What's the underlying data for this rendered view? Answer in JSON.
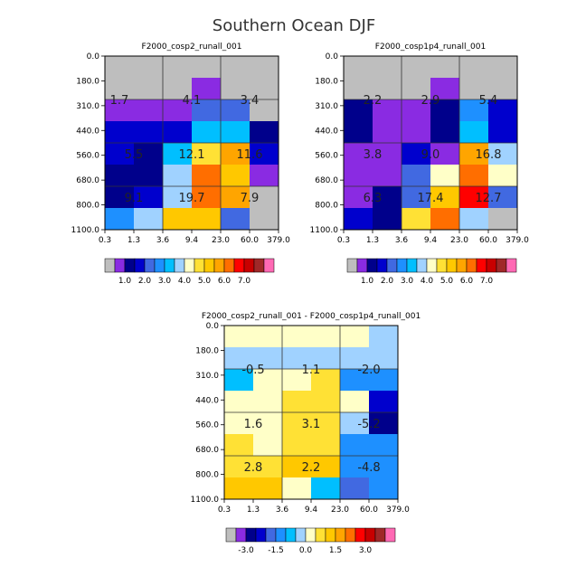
{
  "title": "Southern Ocean DJF",
  "colors": {
    "main_scale": [
      "#bebebe",
      "#8a2be2",
      "#00008b",
      "#0000cd",
      "#4169e1",
      "#1e90ff",
      "#00bfff",
      "#a0d2ff",
      "#ffffc8",
      "#ffe135",
      "#ffc800",
      "#ffa500",
      "#ff6e00",
      "#ff0000",
      "#c80000",
      "#a02828",
      "#ff69b4"
    ],
    "diff_scale": [
      "#bebebe",
      "#8a2be2",
      "#00008b",
      "#0000cd",
      "#4169e1",
      "#1e90ff",
      "#00bfff",
      "#a0d2ff",
      "#ffffc8",
      "#ffe135",
      "#ffc800",
      "#ffa500",
      "#ff6e00",
      "#ff0000",
      "#c80000",
      "#a02828",
      "#ff69b4"
    ]
  },
  "chart_data": [
    {
      "type": "heatmap",
      "title": "F2000_cosp2_runall_001",
      "x_ticks": [
        "0.3",
        "1.3",
        "3.6",
        "9.4",
        "23.0",
        "60.0",
        "379.0"
      ],
      "y_ticks": [
        "0.0",
        "180.0",
        "310.0",
        "440.0",
        "560.0",
        "680.0",
        "800.0",
        "1100.0"
      ],
      "cells": [
        [
          0,
          0,
          0,
          0,
          0,
          0
        ],
        [
          0,
          0,
          0,
          1,
          0,
          0
        ],
        [
          1,
          1,
          1,
          4,
          4,
          0
        ],
        [
          3,
          3,
          3,
          6,
          6,
          2
        ],
        [
          3,
          2,
          6,
          9,
          11,
          3
        ],
        [
          2,
          2,
          7,
          12,
          10,
          1
        ],
        [
          2,
          3,
          7,
          12,
          11,
          0
        ],
        [
          5,
          7,
          10,
          10,
          4,
          0
        ]
      ],
      "labels": [
        {
          "text": "1.7",
          "col": 0,
          "row": 1.5
        },
        {
          "text": "4.1",
          "col": 2.5,
          "row": 1.5
        },
        {
          "text": "3.4",
          "col": 4.5,
          "row": 1.5
        },
        {
          "text": "5.5",
          "col": 0.5,
          "row": 4
        },
        {
          "text": "12.1",
          "col": 2.5,
          "row": 4
        },
        {
          "text": "11.6",
          "col": 4.5,
          "row": 4
        },
        {
          "text": "9.1",
          "col": 0.5,
          "row": 6
        },
        {
          "text": "19.7",
          "col": 2.5,
          "row": 6
        },
        {
          "text": "7.9",
          "col": 4.5,
          "row": 6
        }
      ]
    },
    {
      "type": "heatmap",
      "title": "F2000_cosp1p4_runall_001",
      "x_ticks": [
        "0.3",
        "1.3",
        "3.6",
        "9.4",
        "23.0",
        "60.0",
        "379.0"
      ],
      "y_ticks": [
        "0.0",
        "180.0",
        "310.0",
        "440.0",
        "560.0",
        "680.0",
        "800.0",
        "1100.0"
      ],
      "cells": [
        [
          0,
          0,
          0,
          0,
          0,
          0
        ],
        [
          0,
          0,
          0,
          1,
          0,
          0
        ],
        [
          2,
          1,
          1,
          2,
          5,
          3
        ],
        [
          2,
          1,
          1,
          2,
          6,
          3
        ],
        [
          1,
          1,
          3,
          1,
          11,
          7
        ],
        [
          1,
          1,
          4,
          8,
          12,
          8
        ],
        [
          1,
          2,
          4,
          10,
          13,
          4
        ],
        [
          3,
          2,
          9,
          12,
          7,
          0
        ]
      ],
      "labels": [
        {
          "text": "2.2",
          "col": 0.5,
          "row": 1.5
        },
        {
          "text": "2.9",
          "col": 2.5,
          "row": 1.5
        },
        {
          "text": "5.4",
          "col": 4.5,
          "row": 1.5
        },
        {
          "text": "3.8",
          "col": 0.5,
          "row": 4
        },
        {
          "text": "9.0",
          "col": 2.5,
          "row": 4
        },
        {
          "text": "16.8",
          "col": 4.5,
          "row": 4
        },
        {
          "text": "6.3",
          "col": 0.5,
          "row": 6
        },
        {
          "text": "17.4",
          "col": 2.5,
          "row": 6
        },
        {
          "text": "12.7",
          "col": 4.5,
          "row": 6
        }
      ]
    },
    {
      "type": "heatmap",
      "title": "F2000_cosp2_runall_001 - F2000_cosp1p4_runall_001",
      "x_ticks": [
        "0.3",
        "1.3",
        "3.6",
        "9.4",
        "23.0",
        "60.0",
        "379.0"
      ],
      "y_ticks": [
        "0.0",
        "180.0",
        "310.0",
        "440.0",
        "560.0",
        "680.0",
        "800.0",
        "1100.0"
      ],
      "cells": [
        [
          8,
          8,
          8,
          8,
          8,
          7
        ],
        [
          7,
          7,
          7,
          7,
          7,
          7
        ],
        [
          6,
          8,
          8,
          9,
          5,
          5
        ],
        [
          8,
          8,
          9,
          9,
          8,
          3
        ],
        [
          8,
          8,
          9,
          9,
          7,
          2
        ],
        [
          9,
          8,
          9,
          9,
          5,
          5
        ],
        [
          9,
          9,
          10,
          10,
          5,
          5
        ],
        [
          10,
          10,
          8,
          6,
          4,
          5
        ]
      ],
      "labels": [
        {
          "text": "-0.5",
          "col": 0.5,
          "row": 1.5
        },
        {
          "text": "1.1",
          "col": 2.5,
          "row": 1.5
        },
        {
          "text": "-2.0",
          "col": 4.5,
          "row": 1.5
        },
        {
          "text": "1.6",
          "col": 0.5,
          "row": 4
        },
        {
          "text": "3.1",
          "col": 2.5,
          "row": 4
        },
        {
          "text": "-5.2",
          "col": 4.5,
          "row": 4
        },
        {
          "text": "2.8",
          "col": 0.5,
          "row": 6
        },
        {
          "text": "2.2",
          "col": 2.5,
          "row": 6
        },
        {
          "text": "-4.8",
          "col": 4.5,
          "row": 6
        }
      ]
    }
  ],
  "colorbars": [
    {
      "labels": [
        "1.0",
        "2.0",
        "3.0",
        "4.0",
        "5.0",
        "6.0",
        "7.0"
      ]
    },
    {
      "labels": [
        "1.0",
        "2.0",
        "3.0",
        "4.0",
        "5.0",
        "6.0",
        "7.0"
      ]
    },
    {
      "labels": [
        "-3.0",
        "-1.5",
        "0.0",
        "1.5",
        "3.0"
      ]
    }
  ]
}
